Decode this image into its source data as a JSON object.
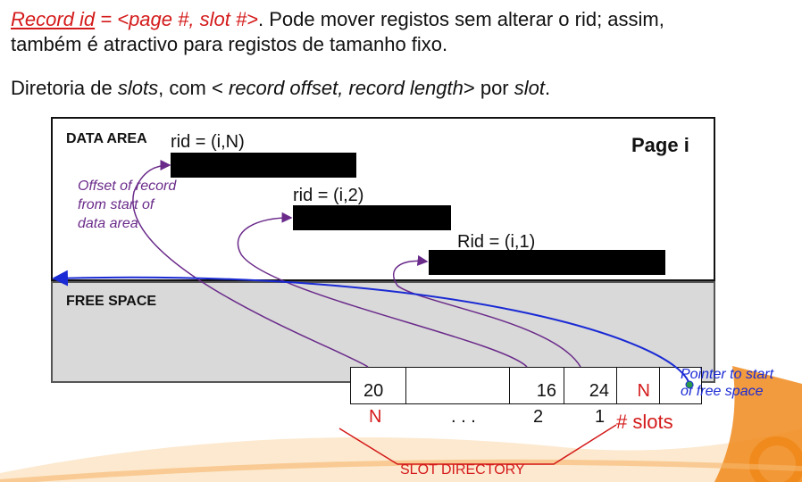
{
  "header": {
    "line1_part1": "Record id",
    "line1_part2": " = <page #, slot #>",
    "line1_part3": ". Pode mover registos sem alterar o rid; assim,",
    "line1_cont": "também é atractivo para registos de tamanho fixo.",
    "line2_a": "Diretoria de ",
    "line2_b": "slots",
    "line2_c": ", com < ",
    "line2_d": "record offset, record length",
    "line2_e": "> por ",
    "line2_f": "slot",
    "line2_g": "."
  },
  "page": {
    "data_area_label": "DATA AREA",
    "title": "Page i",
    "free_space_label": "FREE SPACE",
    "offset_note": "Offset of record from start of data area",
    "records": [
      {
        "rid": "rid = (i,N)"
      },
      {
        "rid": "rid = (i,2)"
      },
      {
        "rid": "Rid = (i,1)"
      }
    ]
  },
  "slot_directory": {
    "cells": [
      "20",
      "",
      "16",
      "24",
      "N"
    ],
    "indices": [
      "N",
      ". . .",
      "2",
      "1"
    ],
    "num_slots_label": "# slots",
    "pointer_note": "Pointer to start of free space",
    "label": "SLOT DIRECTORY"
  },
  "colors": {
    "accent_red": "#d41a1a",
    "purple": "#6a2a8a",
    "blue": "#1a2ad4",
    "free_space": "#d9d9d9",
    "deco_orange": "#f08a1c"
  }
}
